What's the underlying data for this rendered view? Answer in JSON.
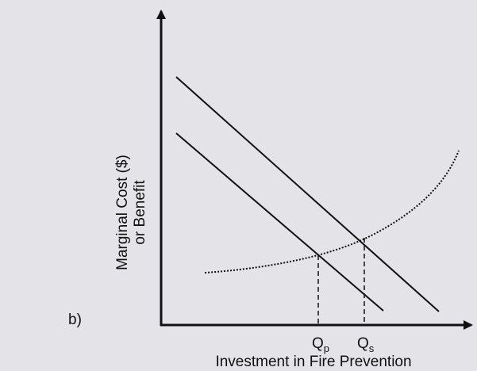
{
  "panel_label": "b)",
  "y_axis_label": [
    "Marginal Cost ($)",
    "or Benefit"
  ],
  "x_axis_label": "Investment in Fire Prevention",
  "markers": [
    {
      "label": "Q",
      "subscript": "p"
    },
    {
      "label": "Q",
      "subscript": "s"
    }
  ]
}
